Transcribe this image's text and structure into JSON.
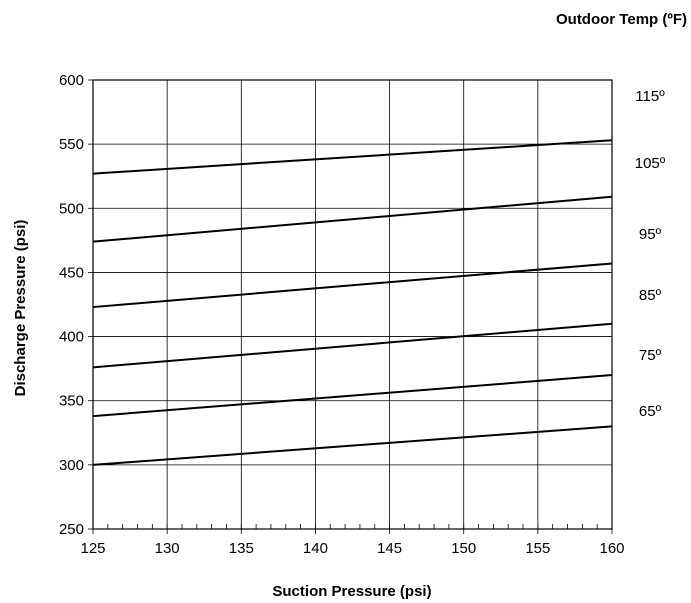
{
  "chart_data": {
    "type": "line",
    "title": "",
    "legend_title": "Outdoor Temp (ºF)",
    "xlabel": "Suction Pressure (psi)",
    "ylabel": "Discharge Pressure (psi)",
    "xlim": [
      125,
      160
    ],
    "ylim": [
      250,
      600
    ],
    "x_ticks": [
      125,
      130,
      135,
      140,
      145,
      150,
      155,
      160
    ],
    "x_tick_labels": [
      "125",
      "130",
      "135",
      "140",
      "145",
      "150",
      "155",
      "160"
    ],
    "y_ticks": [
      250,
      300,
      350,
      400,
      450,
      500,
      550,
      600
    ],
    "y_tick_labels": [
      "250",
      "300",
      "350",
      "400",
      "450",
      "500",
      "550",
      "600"
    ],
    "grid": true,
    "line_color": "#000000",
    "series": [
      {
        "name": "115º",
        "x": [
          125,
          160
        ],
        "y": [
          527,
          553
        ]
      },
      {
        "name": "105º",
        "x": [
          125,
          160
        ],
        "y": [
          474,
          509
        ]
      },
      {
        "name": "95º",
        "x": [
          125,
          160
        ],
        "y": [
          423,
          457
        ]
      },
      {
        "name": "85º",
        "x": [
          125,
          160
        ],
        "y": [
          376,
          410
        ]
      },
      {
        "name": "75º",
        "x": [
          125,
          160
        ],
        "y": [
          338,
          370
        ]
      },
      {
        "name": "65º",
        "x": [
          125,
          160
        ],
        "y": [
          300,
          330
        ]
      }
    ]
  }
}
